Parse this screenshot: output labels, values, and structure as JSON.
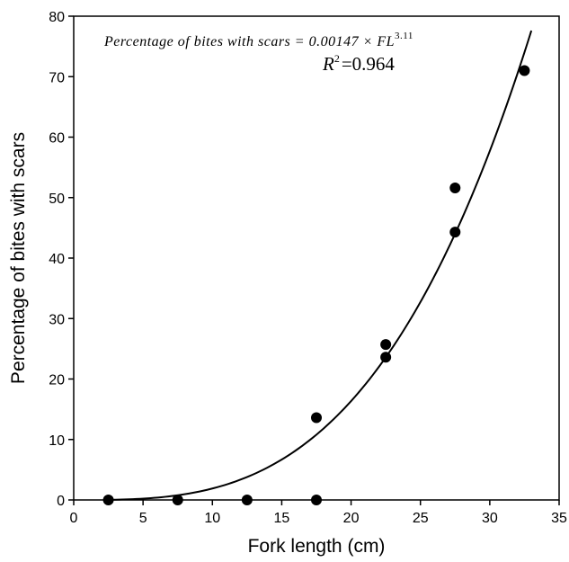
{
  "chart_data": {
    "type": "scatter",
    "xlabel": "Fork length (cm)",
    "ylabel": "Percentage of bites with scars",
    "xlim": [
      0,
      35
    ],
    "ylim": [
      0,
      80
    ],
    "x_ticks": [
      "0",
      "5",
      "10",
      "15",
      "20",
      "25",
      "30",
      "35"
    ],
    "y_ticks": [
      "0",
      "10",
      "20",
      "30",
      "40",
      "50",
      "60",
      "70",
      "80"
    ],
    "grid": false,
    "points": [
      {
        "x": 2.5,
        "y": 0
      },
      {
        "x": 7.5,
        "y": 0
      },
      {
        "x": 12.5,
        "y": 0
      },
      {
        "x": 17.5,
        "y": 0
      },
      {
        "x": 17.5,
        "y": 13.6
      },
      {
        "x": 22.5,
        "y": 23.6
      },
      {
        "x": 22.5,
        "y": 25.7
      },
      {
        "x": 27.5,
        "y": 44.3
      },
      {
        "x": 27.5,
        "y": 51.6
      },
      {
        "x": 32.5,
        "y": 71.0
      }
    ],
    "fit": {
      "equation_text": "Percentage of bites with scars = 0.00147 × FL",
      "exponent_text": "3.11",
      "coefficient": 0.00147,
      "exponent": 3.11,
      "x_range": [
        2.5,
        33
      ],
      "r2_label": "R",
      "r2_power": "2",
      "r2_value": "=0.964"
    },
    "colors": {
      "points": "#000000",
      "line": "#000000"
    }
  }
}
